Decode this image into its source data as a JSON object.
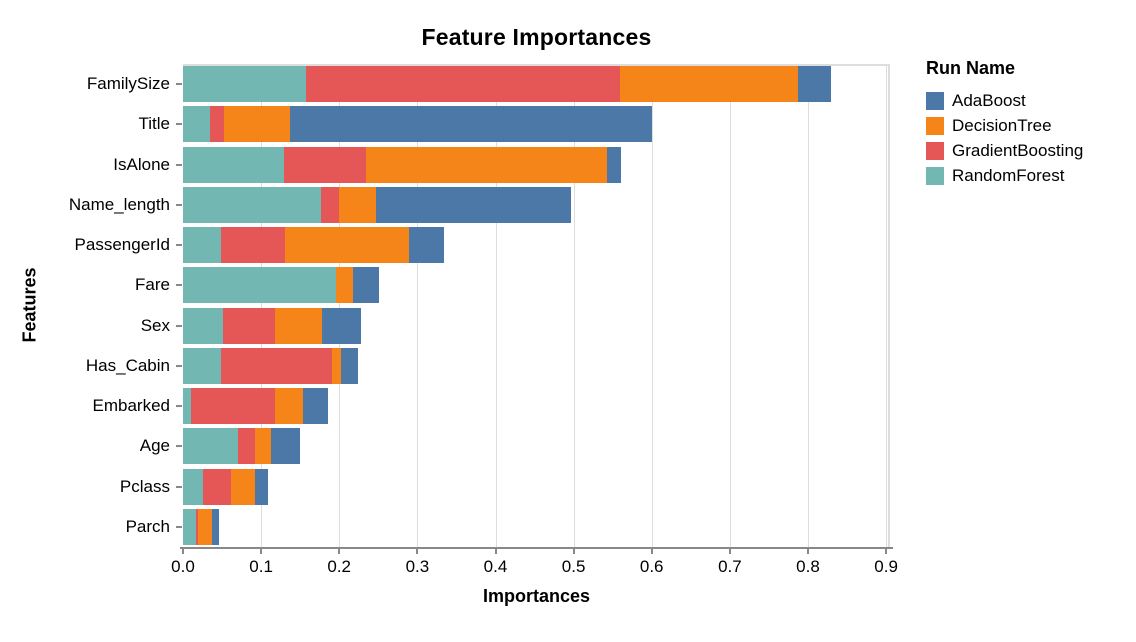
{
  "title": "Feature Importances",
  "x_axis": {
    "label": "Importances",
    "tick_labels": [
      "0.0",
      "0.1",
      "0.2",
      "0.3",
      "0.4",
      "0.5",
      "0.6",
      "0.7",
      "0.8",
      "0.9"
    ],
    "tick_values": [
      0,
      0.1,
      0.2,
      0.3,
      0.4,
      0.5,
      0.6,
      0.7,
      0.8,
      0.9
    ],
    "max": 0.905
  },
  "y_axis": {
    "label": "Features"
  },
  "legend": {
    "title": "Run Name",
    "entries": [
      {
        "label": "AdaBoost",
        "color": "#4c78a8"
      },
      {
        "label": "DecisionTree",
        "color": "#f58518"
      },
      {
        "label": "GradientBoosting",
        "color": "#e45756"
      },
      {
        "label": "RandomForest",
        "color": "#72b7b2"
      }
    ]
  },
  "colors": {
    "gridline": "#dddddd",
    "axis_line": "#888888",
    "background": "#ffffff"
  },
  "chart_data": {
    "type": "bar",
    "orientation": "horizontal",
    "stacked": true,
    "title": "Feature Importances",
    "xlabel": "Importances",
    "ylabel": "Features",
    "xlim": [
      0,
      0.905
    ],
    "grid": true,
    "legend_position": "right",
    "categories": [
      "FamilySize",
      "Title",
      "IsAlone",
      "Name_length",
      "PassengerId",
      "Fare",
      "Sex",
      "Has_Cabin",
      "Embarked",
      "Age",
      "Pclass",
      "Parch"
    ],
    "stack_order_note": "segments stack left-to-right in this series order",
    "series": [
      {
        "name": "RandomForest",
        "color": "#72b7b2",
        "values": [
          0.157,
          0.035,
          0.129,
          0.177,
          0.049,
          0.196,
          0.051,
          0.049,
          0.01,
          0.07,
          0.025,
          0.016
        ]
      },
      {
        "name": "GradientBoosting",
        "color": "#e45756",
        "values": [
          0.402,
          0.018,
          0.105,
          0.023,
          0.082,
          0.0,
          0.067,
          0.142,
          0.108,
          0.022,
          0.036,
          0.003
        ]
      },
      {
        "name": "DecisionTree",
        "color": "#f58518",
        "values": [
          0.228,
          0.084,
          0.309,
          0.047,
          0.158,
          0.021,
          0.06,
          0.011,
          0.036,
          0.021,
          0.031,
          0.018
        ]
      },
      {
        "name": "AdaBoost",
        "color": "#4c78a8",
        "values": [
          0.042,
          0.463,
          0.018,
          0.25,
          0.045,
          0.034,
          0.05,
          0.022,
          0.032,
          0.037,
          0.017,
          0.009
        ]
      }
    ],
    "totals": [
      0.829,
      0.6,
      0.561,
      0.497,
      0.334,
      0.251,
      0.228,
      0.224,
      0.186,
      0.15,
      0.109,
      0.046
    ]
  }
}
